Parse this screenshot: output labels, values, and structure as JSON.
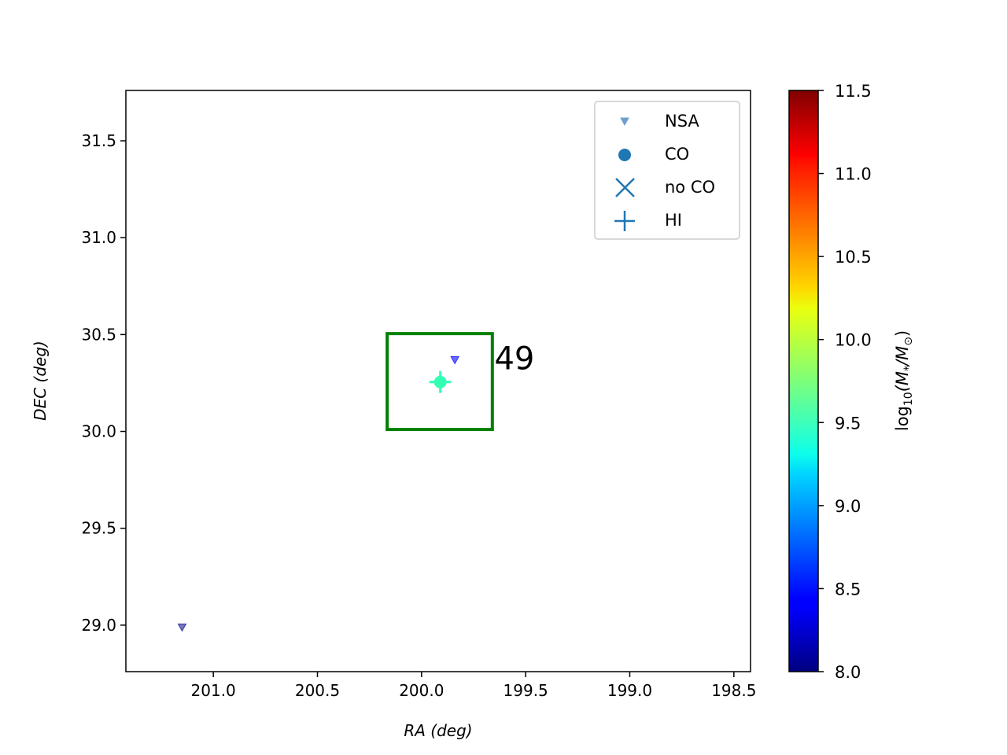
{
  "chart_data": {
    "type": "scatter",
    "title": "",
    "xlabel": "RA (deg)",
    "ylabel": "DEC (deg)",
    "x_inverted": true,
    "xlim": [
      201.42,
      198.42
    ],
    "ylim": [
      28.76,
      31.76
    ],
    "x_ticks": [
      201.0,
      200.5,
      200.0,
      199.5,
      199.0,
      198.5
    ],
    "x_tick_labels": [
      "201.0",
      "200.5",
      "200.0",
      "199.5",
      "199.0",
      "198.5"
    ],
    "y_ticks": [
      29.0,
      29.5,
      30.0,
      30.5,
      31.0,
      31.5
    ],
    "y_tick_labels": [
      "29.0",
      "29.5",
      "30.0",
      "30.5",
      "31.0",
      "31.5"
    ],
    "grid": false,
    "legend": {
      "placement": "top-right",
      "entries": [
        {
          "label": "NSA",
          "marker": "triangle-down"
        },
        {
          "label": "CO",
          "marker": "circle"
        },
        {
          "label": "no CO",
          "marker": "x"
        },
        {
          "label": "HI",
          "marker": "plus"
        }
      ]
    },
    "colorbar": {
      "label": "log10(M*/M⊙)",
      "label_base": "log",
      "label_sub": "10",
      "label_main": "(M",
      "label_star": "*",
      "label_slash": "/M",
      "label_sun": "⊙",
      "label_close": ")",
      "colormap": "jet",
      "vmin": 8.0,
      "vmax": 11.5,
      "ticks": [
        8.0,
        8.5,
        9.0,
        9.5,
        10.0,
        10.5,
        11.0,
        11.5
      ],
      "tick_labels": [
        "8.0",
        "8.5",
        "9.0",
        "9.5",
        "10.0",
        "10.5",
        "11.0",
        "11.5"
      ]
    },
    "series": [
      {
        "name": "NSA",
        "marker": "triangle-down",
        "points": [
          {
            "ra": 201.15,
            "dec": 28.99,
            "color": "#3a3aa0"
          },
          {
            "ra": 199.84,
            "dec": 30.37,
            "color": "#2a2aff"
          }
        ]
      },
      {
        "name": "HI",
        "marker": "plus",
        "points": [
          {
            "ra": 199.91,
            "dec": 30.255,
            "color": "#33ffb5"
          }
        ]
      },
      {
        "name": "CO",
        "marker": "circle",
        "points": [
          {
            "ra": 199.91,
            "dec": 30.255,
            "color": "#33ffb5"
          }
        ]
      }
    ],
    "region_box": {
      "ra_min": 199.66,
      "ra_max": 200.165,
      "dec_min": 30.01,
      "dec_max": 30.505,
      "color": "#008000",
      "label": "49",
      "label_ra": 199.65,
      "label_dec": 30.32
    }
  }
}
